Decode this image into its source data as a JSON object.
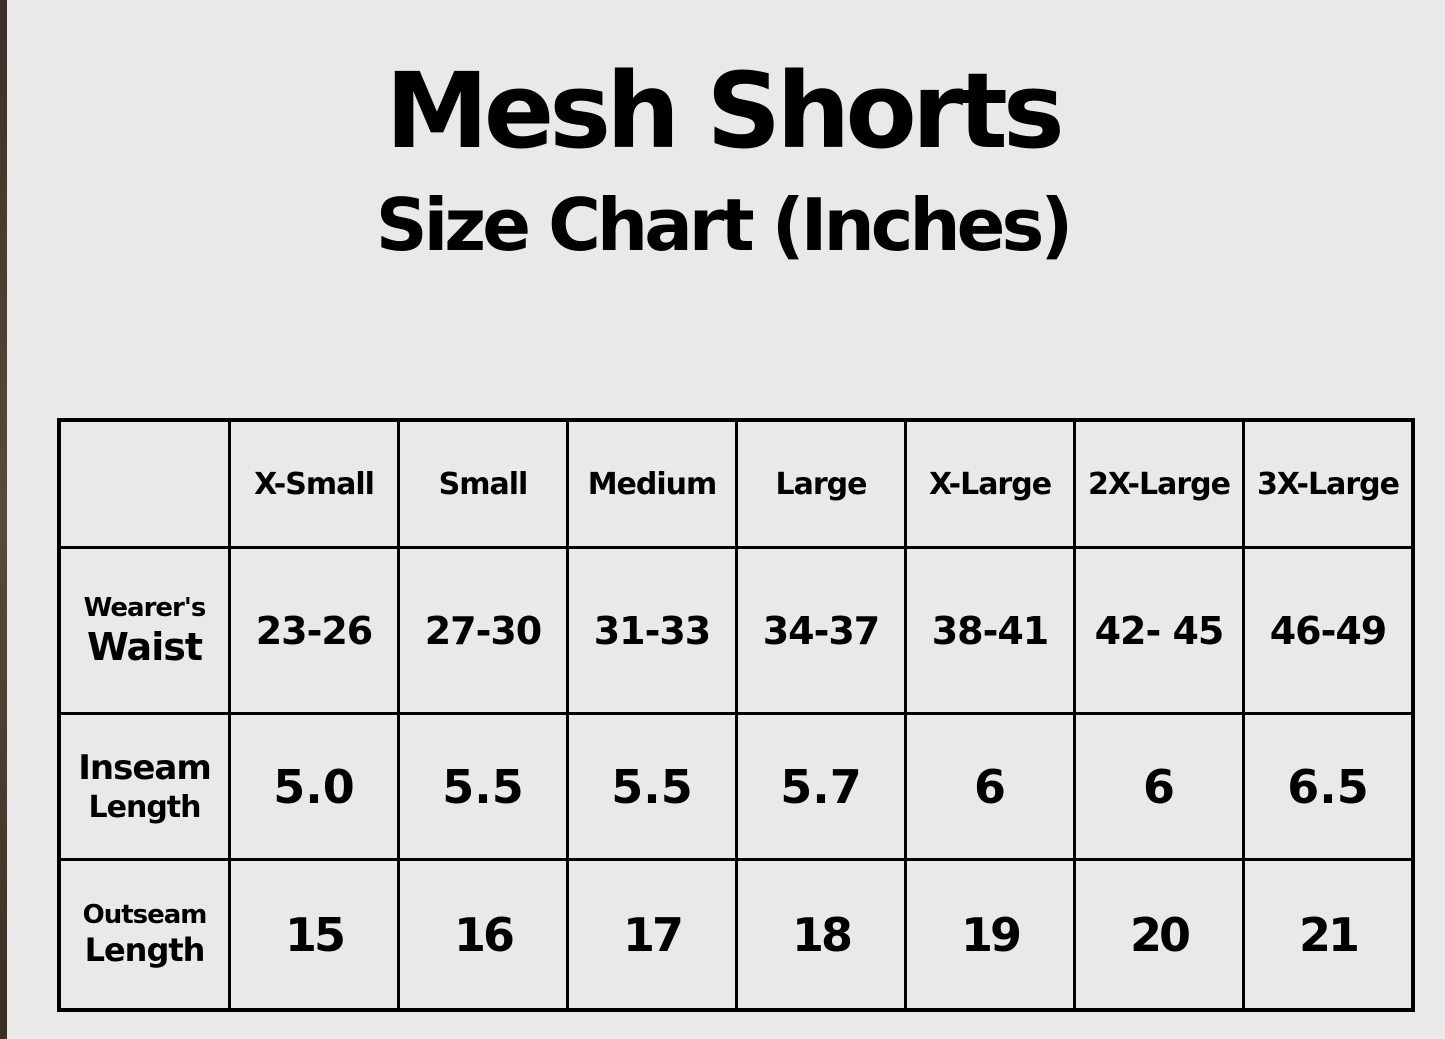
{
  "title": "Mesh Shorts",
  "subtitle": "Size Chart (Inches)",
  "table": {
    "columns": [
      "X-Small",
      "Small",
      "Medium",
      "Large",
      "X-Large",
      "2X-Large",
      "3X-Large"
    ],
    "rows": [
      {
        "label_top": "Wearer's",
        "label_bottom": "Waist",
        "values": [
          "23-26",
          "27-30",
          "31-33",
          "34-37",
          "38-41",
          "42- 45",
          "46-49"
        ]
      },
      {
        "label_top": "Inseam",
        "label_bottom": "Length",
        "values": [
          "5.0",
          "5.5",
          "5.5",
          "5.7",
          "6",
          "6",
          "6.5"
        ]
      },
      {
        "label_top": "Outseam",
        "label_bottom": "Length",
        "values": [
          "15",
          "16",
          "17",
          "18",
          "19",
          "20",
          "21"
        ]
      }
    ]
  }
}
